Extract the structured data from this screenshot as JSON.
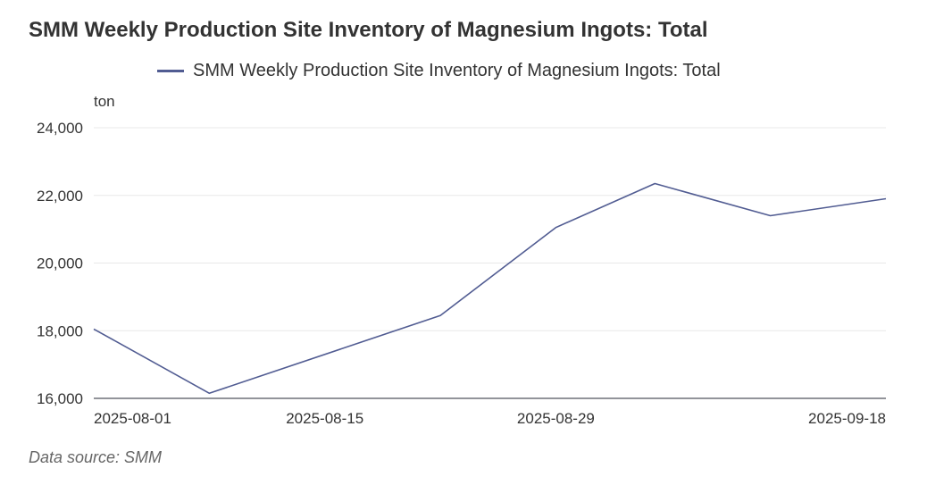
{
  "colors": {
    "series_line": "#515c92",
    "grid": "#e8e8e8",
    "axis": "#6e7079",
    "text": "#333333"
  },
  "chart_data": {
    "type": "line",
    "title": "SMM Weekly Production Site Inventory of Magnesium Ingots: Total",
    "ylabel": "ton",
    "xlabel": "",
    "ylim": [
      16000,
      24000
    ],
    "yticks": [
      "16,000",
      "18,000",
      "20,000",
      "22,000",
      "24,000"
    ],
    "ytick_values": [
      16000,
      18000,
      20000,
      22000,
      24000
    ],
    "xticks": [
      "2025-08-01",
      "2025-08-15",
      "2025-08-29",
      "2025-09-18"
    ],
    "legend_position": "top-center",
    "grid": true,
    "x": [
      "2025-08-01",
      "2025-08-08",
      "2025-08-22",
      "2025-08-29",
      "2025-09-04",
      "2025-09-11",
      "2025-09-18"
    ],
    "series": [
      {
        "name": "SMM Weekly Production Site Inventory of Magnesium Ingots: Total",
        "values": [
          18050,
          16150,
          18450,
          21050,
          22350,
          21400,
          21900
        ]
      }
    ]
  },
  "footer": {
    "source": "Data source:  SMM"
  }
}
